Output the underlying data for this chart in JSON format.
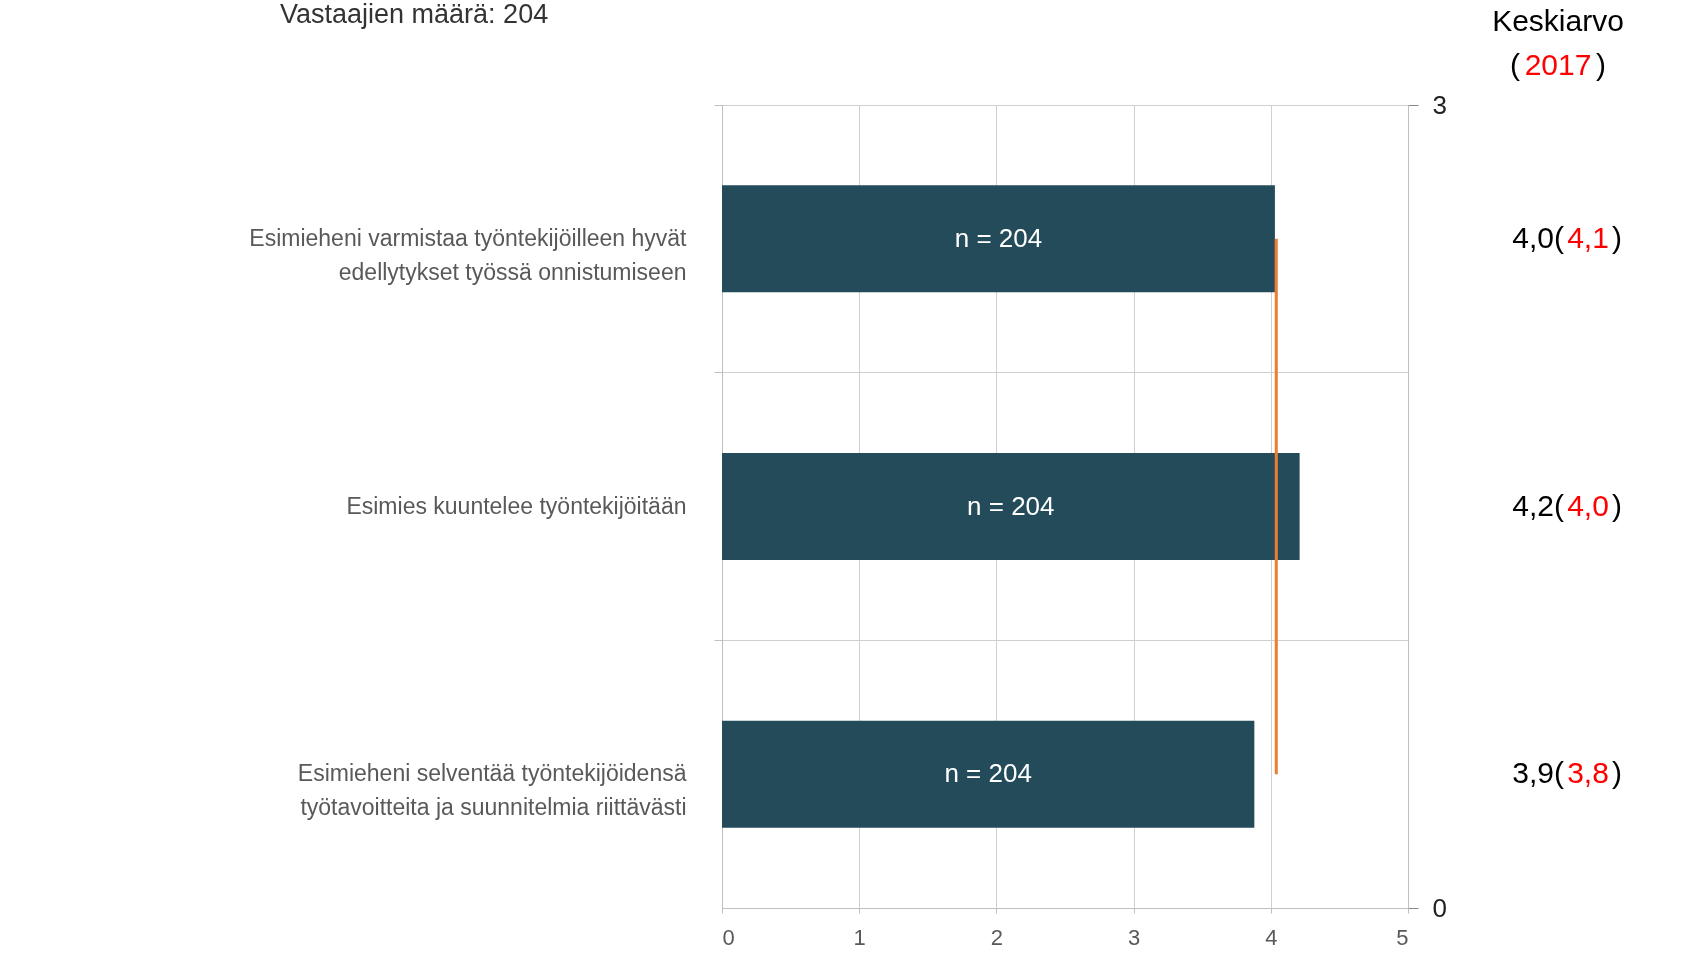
{
  "chart_data": {
    "type": "bar",
    "orientation": "horizontal",
    "categories": [
      "Esimieheni varmistaa työntekijöilleen hyvät edellytykset työssä onnistumiseen",
      "Esimies kuuntelee työntekijöitään",
      "Esimieheni selventää työntekijöidensä työtavoitteita ja suunnitelmia riittävästi"
    ],
    "values": [
      4.03,
      4.21,
      3.88
    ],
    "color": "#234b5a",
    "ref_lines": [
      {
        "axis": "x",
        "value": 4.04,
        "color": "#ed7d31"
      }
    ],
    "xlim": [
      0,
      5
    ],
    "xticks": [
      0,
      1,
      2,
      3,
      4,
      5
    ],
    "y2lim": [
      0,
      3
    ],
    "y2ticks": [
      0,
      3
    ],
    "grid": true,
    "annotations": [
      "Vastaajien määrä: 204",
      "Keskiarvo(2017)",
      "n = 204",
      "n = 204",
      "n = 204",
      "4,0(4,1)",
      "4,2(4,0)",
      "3,9(3,8)"
    ]
  }
}
